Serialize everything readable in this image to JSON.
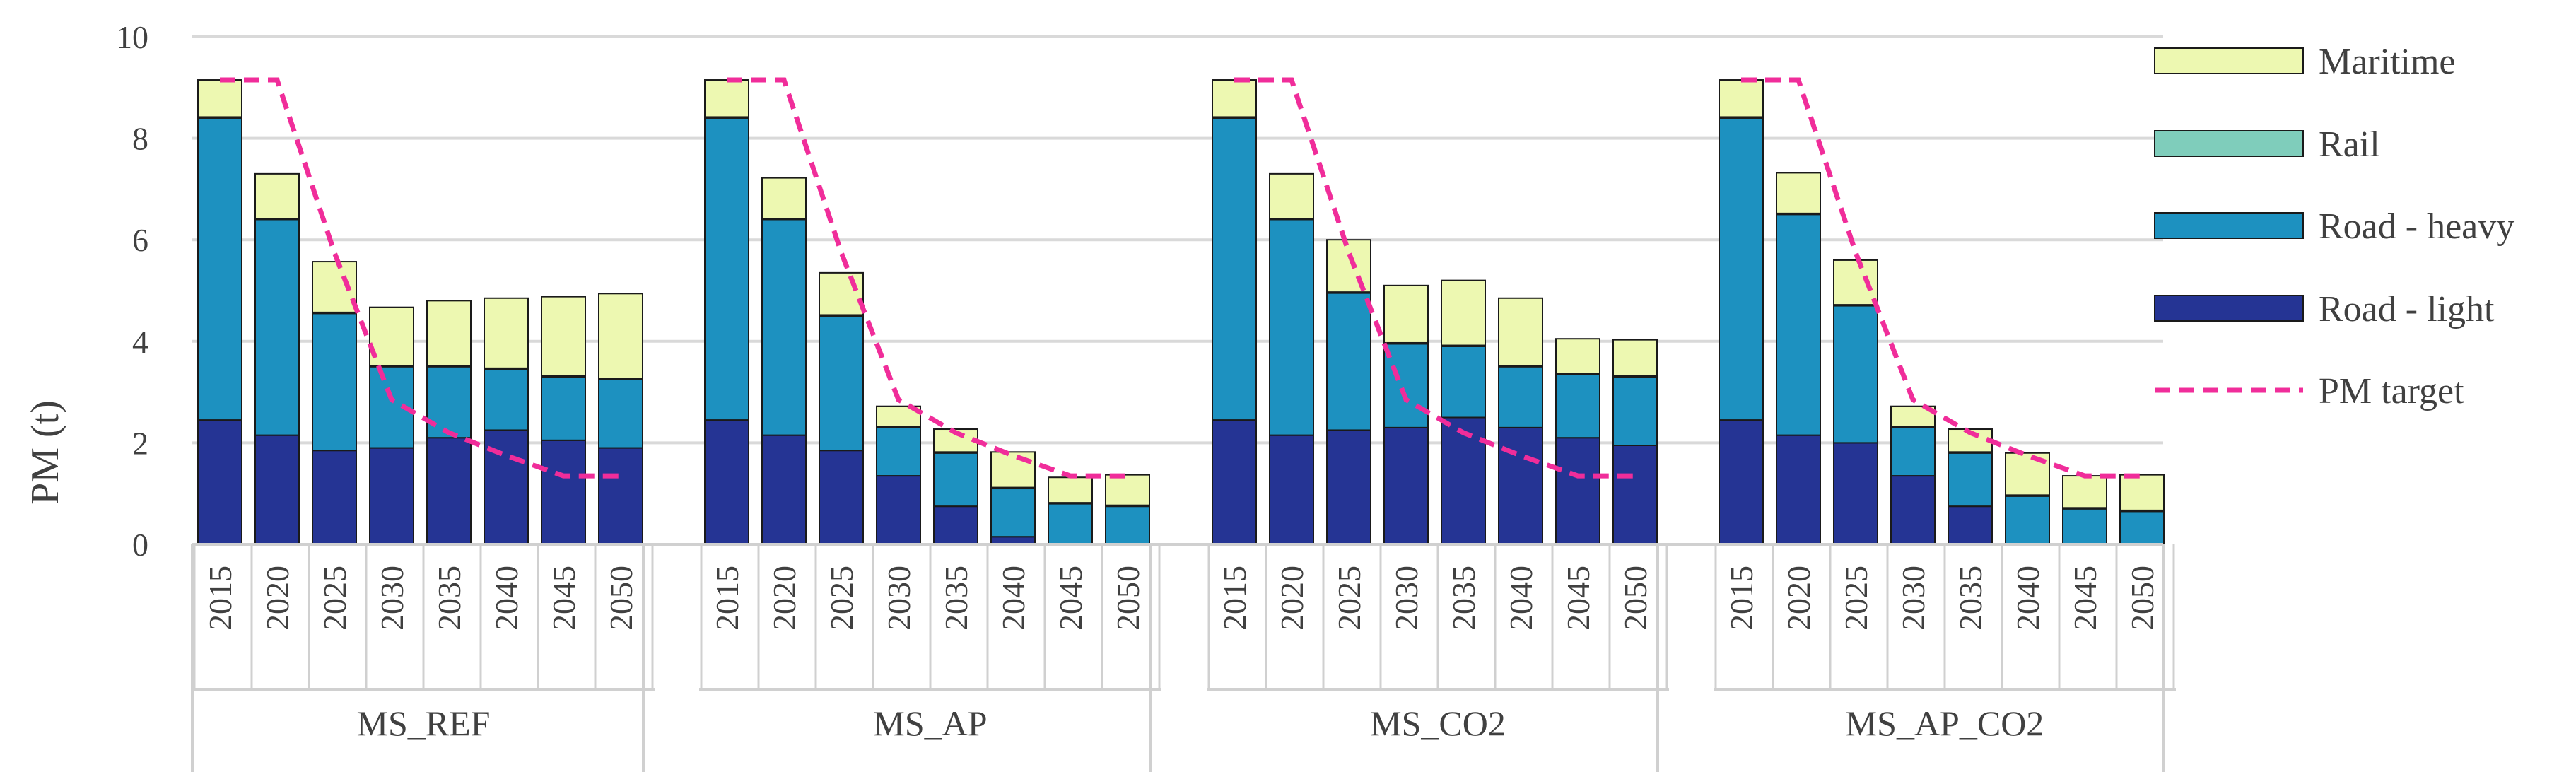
{
  "chart_data": {
    "type": "bar",
    "stacked": true,
    "ylabel": "PM (t)",
    "ylim": [
      0,
      10
    ],
    "yticks": [
      "0",
      "2",
      "4",
      "6",
      "8",
      "10"
    ],
    "grid": true,
    "legend_position": "right",
    "categories": [
      "2015",
      "2020",
      "2025",
      "2030",
      "2035",
      "2040",
      "2045",
      "2050"
    ],
    "legend": [
      {
        "name": "Maritime",
        "color": "#edf8b1",
        "kind": "bar"
      },
      {
        "name": "Rail",
        "color": "#7fcdbb",
        "kind": "bar"
      },
      {
        "name": "Road - heavy",
        "color": "#1d91c0",
        "kind": "bar"
      },
      {
        "name": "Road - light",
        "color": "#253494",
        "kind": "bar"
      },
      {
        "name": "PM target",
        "color": "#f02d9a",
        "kind": "dashed-line"
      }
    ],
    "groups": [
      {
        "name": "MS_REF",
        "road_light": [
          2.45,
          2.15,
          1.85,
          1.9,
          2.1,
          2.25,
          2.05,
          1.9
        ],
        "road_heavy": [
          5.95,
          4.25,
          2.7,
          1.6,
          1.4,
          1.2,
          1.25,
          1.35
        ],
        "rail": [
          0.02,
          0.02,
          0.02,
          0.02,
          0.02,
          0.02,
          0.02,
          0.02
        ],
        "maritime": [
          0.73,
          0.88,
          1.0,
          1.15,
          1.28,
          1.38,
          1.56,
          1.67
        ],
        "pm_target": [
          9.15,
          9.15,
          5.75,
          2.85,
          2.2,
          1.75,
          1.35,
          1.35
        ]
      },
      {
        "name": "MS_AP",
        "road_light": [
          2.45,
          2.15,
          1.85,
          1.35,
          0.75,
          0.15,
          0.0,
          0.0
        ],
        "road_heavy": [
          5.95,
          4.25,
          2.65,
          0.95,
          1.05,
          0.95,
          0.8,
          0.75
        ],
        "rail": [
          0.02,
          0.02,
          0.02,
          0.02,
          0.02,
          0.02,
          0.02,
          0.02
        ],
        "maritime": [
          0.73,
          0.8,
          0.83,
          0.4,
          0.45,
          0.7,
          0.5,
          0.6
        ],
        "pm_target": [
          9.15,
          9.15,
          5.75,
          2.85,
          2.2,
          1.75,
          1.35,
          1.35
        ]
      },
      {
        "name": "MS_CO2",
        "road_light": [
          2.45,
          2.15,
          2.25,
          2.3,
          2.5,
          2.3,
          2.1,
          1.95
        ],
        "road_heavy": [
          5.95,
          4.25,
          2.7,
          1.65,
          1.4,
          1.2,
          1.25,
          1.35
        ],
        "rail": [
          0.02,
          0.02,
          0.02,
          0.02,
          0.02,
          0.02,
          0.02,
          0.02
        ],
        "maritime": [
          0.73,
          0.88,
          1.03,
          1.13,
          1.28,
          1.33,
          0.68,
          0.71
        ],
        "pm_target": [
          9.15,
          9.15,
          5.75,
          2.85,
          2.2,
          1.75,
          1.35,
          1.35
        ]
      },
      {
        "name": "MS_AP_CO2",
        "road_light": [
          2.45,
          2.15,
          2.0,
          1.35,
          0.75,
          0.0,
          0.0,
          0.0
        ],
        "road_heavy": [
          5.95,
          4.35,
          2.7,
          0.95,
          1.05,
          0.95,
          0.7,
          0.65
        ],
        "rail": [
          0.02,
          0.02,
          0.02,
          0.02,
          0.02,
          0.02,
          0.02,
          0.02
        ],
        "maritime": [
          0.73,
          0.8,
          0.88,
          0.4,
          0.45,
          0.83,
          0.63,
          0.7
        ],
        "pm_target": [
          9.15,
          9.15,
          5.75,
          2.85,
          2.2,
          1.75,
          1.35,
          1.35
        ]
      }
    ]
  }
}
